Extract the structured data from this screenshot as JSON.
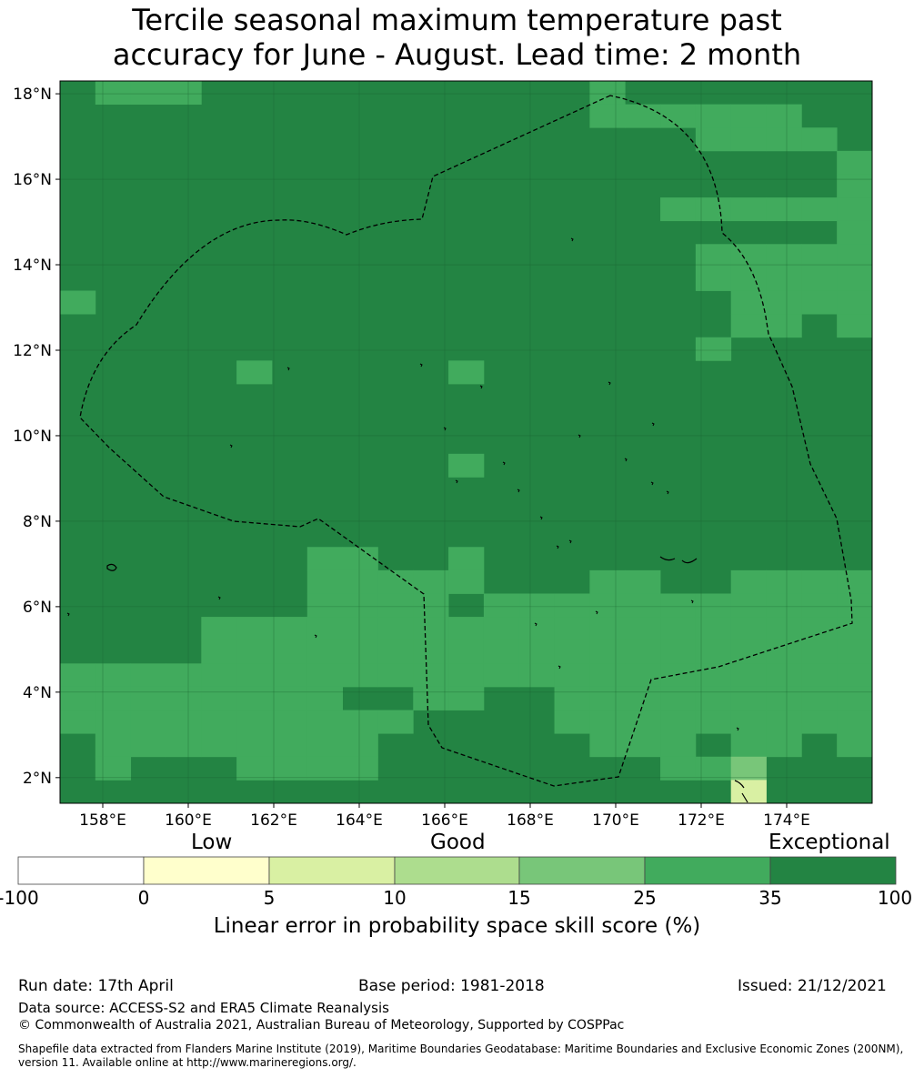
{
  "title": {
    "line1": "Tercile seasonal maximum temperature past",
    "line2": "accuracy for June - August. Lead time: 2 month"
  },
  "map": {
    "lon_range": [
      157,
      176
    ],
    "lat_range": [
      1.4,
      18.3
    ],
    "x_ticks": [
      "158°E",
      "160°E",
      "162°E",
      "164°E",
      "166°E",
      "168°E",
      "170°E",
      "172°E",
      "174°E"
    ],
    "y_ticks": [
      "18°N",
      "16°N",
      "14°N",
      "12°N",
      "10°N",
      "8°N",
      "6°N",
      "4°N",
      "2°N"
    ],
    "colors": {
      "exceptional": "#238443",
      "good_high": "#41ab5d",
      "good_mid": "#78c679",
      "good_low": "#addd8e",
      "low_high": "#d9f0a3",
      "low": "#ffffcc",
      "none": "#ffffff"
    },
    "cells_good_high": [
      [
        1,
        0
      ],
      [
        2,
        0
      ],
      [
        3,
        0
      ],
      [
        15,
        0
      ],
      [
        15,
        1
      ],
      [
        16,
        1
      ],
      [
        17,
        1
      ],
      [
        18,
        1
      ],
      [
        19,
        1
      ],
      [
        20,
        1
      ],
      [
        18,
        2
      ],
      [
        19,
        2
      ],
      [
        20,
        2
      ],
      [
        21,
        2
      ],
      [
        22,
        3
      ],
      [
        22,
        4
      ],
      [
        17,
        5
      ],
      [
        18,
        5
      ],
      [
        19,
        5
      ],
      [
        20,
        5
      ],
      [
        21,
        5
      ],
      [
        22,
        5
      ],
      [
        22,
        6
      ],
      [
        18,
        7
      ],
      [
        19,
        7
      ],
      [
        20,
        7
      ],
      [
        21,
        7
      ],
      [
        22,
        7
      ],
      [
        18,
        8
      ],
      [
        19,
        8
      ],
      [
        20,
        8
      ],
      [
        21,
        8
      ],
      [
        22,
        8
      ],
      [
        19,
        9
      ],
      [
        20,
        9
      ],
      [
        22,
        9
      ],
      [
        22,
        10
      ],
      [
        21,
        9
      ],
      [
        0,
        9
      ],
      [
        19,
        10
      ],
      [
        20,
        10
      ],
      [
        18,
        11
      ],
      [
        5,
        12
      ],
      [
        11,
        12
      ],
      [
        11,
        16
      ],
      [
        7,
        20
      ],
      [
        8,
        20
      ],
      [
        11,
        20
      ],
      [
        15,
        21
      ],
      [
        16,
        21
      ],
      [
        19,
        21
      ],
      [
        20,
        21
      ],
      [
        21,
        21
      ],
      [
        22,
        21
      ],
      [
        7,
        21
      ],
      [
        8,
        21
      ],
      [
        9,
        21
      ],
      [
        10,
        21
      ],
      [
        11,
        21
      ],
      [
        13,
        22
      ],
      [
        14,
        22
      ],
      [
        15,
        22
      ],
      [
        16,
        22
      ],
      [
        17,
        22
      ],
      [
        18,
        22
      ],
      [
        19,
        22
      ],
      [
        20,
        22
      ],
      [
        21,
        22
      ],
      [
        22,
        22
      ],
      [
        7,
        22
      ],
      [
        8,
        22
      ],
      [
        9,
        22
      ],
      [
        10,
        22
      ],
      [
        12,
        22
      ],
      [
        4,
        23
      ],
      [
        5,
        23
      ],
      [
        6,
        23
      ],
      [
        7,
        23
      ],
      [
        8,
        23
      ],
      [
        9,
        23
      ],
      [
        10,
        23
      ],
      [
        11,
        23
      ],
      [
        12,
        23
      ],
      [
        13,
        23
      ],
      [
        14,
        23
      ],
      [
        15,
        23
      ],
      [
        16,
        23
      ],
      [
        17,
        23
      ],
      [
        18,
        23
      ],
      [
        19,
        23
      ],
      [
        20,
        23
      ],
      [
        21,
        23
      ],
      [
        22,
        23
      ],
      [
        4,
        24
      ],
      [
        5,
        24
      ],
      [
        6,
        24
      ],
      [
        7,
        24
      ],
      [
        8,
        24
      ],
      [
        9,
        24
      ],
      [
        10,
        24
      ],
      [
        11,
        24
      ],
      [
        12,
        24
      ],
      [
        13,
        24
      ],
      [
        14,
        24
      ],
      [
        15,
        24
      ],
      [
        16,
        24
      ],
      [
        17,
        24
      ],
      [
        18,
        24
      ],
      [
        19,
        24
      ],
      [
        20,
        24
      ],
      [
        21,
        24
      ],
      [
        22,
        24
      ],
      [
        0,
        25
      ],
      [
        1,
        25
      ],
      [
        2,
        25
      ],
      [
        3,
        25
      ],
      [
        4,
        25
      ],
      [
        5,
        25
      ],
      [
        6,
        25
      ],
      [
        7,
        25
      ],
      [
        8,
        25
      ],
      [
        9,
        25
      ],
      [
        10,
        25
      ],
      [
        11,
        25
      ],
      [
        12,
        25
      ],
      [
        13,
        25
      ],
      [
        14,
        25
      ],
      [
        15,
        25
      ],
      [
        16,
        25
      ],
      [
        17,
        25
      ],
      [
        18,
        25
      ],
      [
        19,
        25
      ],
      [
        20,
        25
      ],
      [
        21,
        25
      ],
      [
        22,
        25
      ],
      [
        0,
        26
      ],
      [
        1,
        26
      ],
      [
        2,
        26
      ],
      [
        3,
        26
      ],
      [
        4,
        26
      ],
      [
        5,
        26
      ],
      [
        6,
        26
      ],
      [
        7,
        26
      ],
      [
        10,
        26
      ],
      [
        11,
        26
      ],
      [
        14,
        26
      ],
      [
        15,
        26
      ],
      [
        16,
        26
      ],
      [
        17,
        26
      ],
      [
        18,
        26
      ],
      [
        19,
        26
      ],
      [
        20,
        26
      ],
      [
        21,
        26
      ],
      [
        22,
        26
      ],
      [
        0,
        27
      ],
      [
        1,
        27
      ],
      [
        2,
        27
      ],
      [
        3,
        27
      ],
      [
        4,
        27
      ],
      [
        5,
        27
      ],
      [
        6,
        27
      ],
      [
        7,
        27
      ],
      [
        8,
        27
      ],
      [
        9,
        27
      ],
      [
        14,
        27
      ],
      [
        15,
        27
      ],
      [
        16,
        27
      ],
      [
        17,
        27
      ],
      [
        18,
        27
      ],
      [
        19,
        27
      ],
      [
        20,
        27
      ],
      [
        21,
        27
      ],
      [
        22,
        27
      ],
      [
        1,
        28
      ],
      [
        2,
        28
      ],
      [
        3,
        28
      ],
      [
        4,
        28
      ],
      [
        5,
        28
      ],
      [
        6,
        28
      ],
      [
        7,
        28
      ],
      [
        8,
        28
      ],
      [
        15,
        28
      ],
      [
        16,
        28
      ],
      [
        17,
        28
      ],
      [
        19,
        28
      ],
      [
        20,
        28
      ],
      [
        22,
        28
      ],
      [
        1,
        29
      ],
      [
        5,
        29
      ],
      [
        6,
        29
      ],
      [
        7,
        29
      ],
      [
        8,
        29
      ],
      [
        17,
        29
      ],
      [
        18,
        29
      ]
    ],
    "cells_low_high": [
      [
        19,
        30
      ]
    ],
    "cells_good_mid": [
      [
        19,
        29
      ]
    ]
  },
  "colorbar": {
    "quality_labels": [
      "Low",
      "Good",
      "Exceptional"
    ],
    "tick_labels": [
      "-100",
      "0",
      "5",
      "10",
      "15",
      "25",
      "35",
      "100"
    ],
    "segments": [
      "#ffffff",
      "#ffffcc",
      "#d9f0a3",
      "#addd8e",
      "#78c679",
      "#41ab5d",
      "#238443"
    ],
    "caption": "Linear error in probability space skill score (%)"
  },
  "footer": {
    "run_date": "Run date: 17th April",
    "base_period": "Base period: 1981-2018",
    "issued": "Issued: 21/12/2021",
    "data_source": "Data source: ACCESS-S2 and ERA5 Climate Reanalysis",
    "copyright": "© Commonwealth of Australia 2021, Australian Bureau of Meteorology, Supported by COSPPac",
    "shapefile": "Shapefile data extracted from Flanders Marine Institute (2019), Maritime Boundaries Geodatabase: Maritime Boundaries and Exclusive Economic Zones (200NM), version 11. Available online at http://www.marineregions.org/."
  }
}
